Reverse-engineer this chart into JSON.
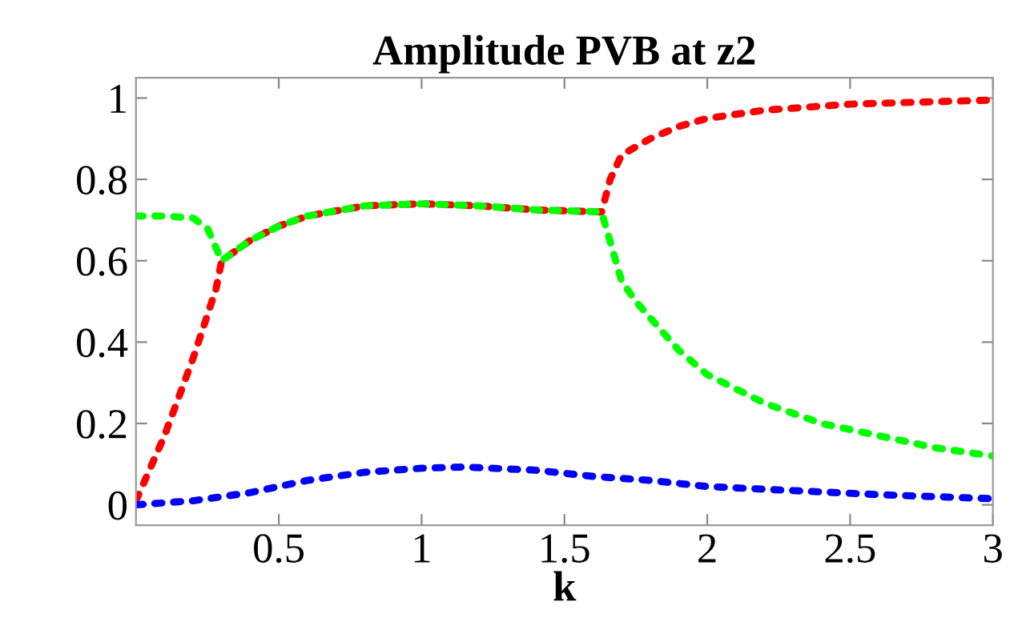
{
  "chart_data": {
    "type": "line",
    "title": "Amplitude PVB at z2",
    "xlabel": "k",
    "xlim": [
      0,
      3
    ],
    "ylim": [
      -0.05,
      1.05
    ],
    "xticks": [
      0.5,
      1,
      1.5,
      2,
      2.5,
      3
    ],
    "yticks": [
      0,
      0.2,
      0.4,
      0.6,
      0.8,
      1
    ],
    "grid": false,
    "line_style": "dotted",
    "marker": "none",
    "series": [
      {
        "color": "#ff0000",
        "x": [
          0,
          0.1,
          0.2,
          0.28,
          0.3,
          0.4,
          0.5,
          0.6,
          0.8,
          1.0,
          1.2,
          1.4,
          1.63,
          1.66,
          1.7,
          1.8,
          1.9,
          2.0,
          2.2,
          2.5,
          3.0
        ],
        "values": [
          0.01,
          0.17,
          0.36,
          0.53,
          0.6,
          0.65,
          0.685,
          0.71,
          0.735,
          0.74,
          0.735,
          0.725,
          0.72,
          0.8,
          0.86,
          0.9,
          0.93,
          0.95,
          0.97,
          0.985,
          0.995
        ]
      },
      {
        "color": "#00ff00",
        "x": [
          0,
          0.1,
          0.2,
          0.25,
          0.3,
          0.4,
          0.5,
          0.6,
          0.8,
          1.0,
          1.2,
          1.4,
          1.63,
          1.7,
          1.75,
          1.9,
          2.0,
          2.2,
          2.4,
          2.6,
          2.8,
          3.0
        ],
        "values": [
          0.71,
          0.71,
          0.705,
          0.68,
          0.6,
          0.65,
          0.685,
          0.71,
          0.735,
          0.74,
          0.735,
          0.725,
          0.72,
          0.55,
          0.5,
          0.38,
          0.32,
          0.25,
          0.2,
          0.17,
          0.14,
          0.12
        ]
      },
      {
        "color": "#0000ff",
        "x": [
          0,
          0.2,
          0.4,
          0.6,
          0.8,
          1.0,
          1.15,
          1.4,
          1.6,
          1.8,
          2.0,
          2.3,
          2.6,
          3.0
        ],
        "values": [
          0.0,
          0.01,
          0.03,
          0.06,
          0.08,
          0.09,
          0.093,
          0.085,
          0.07,
          0.06,
          0.045,
          0.035,
          0.025,
          0.015
        ]
      }
    ]
  }
}
